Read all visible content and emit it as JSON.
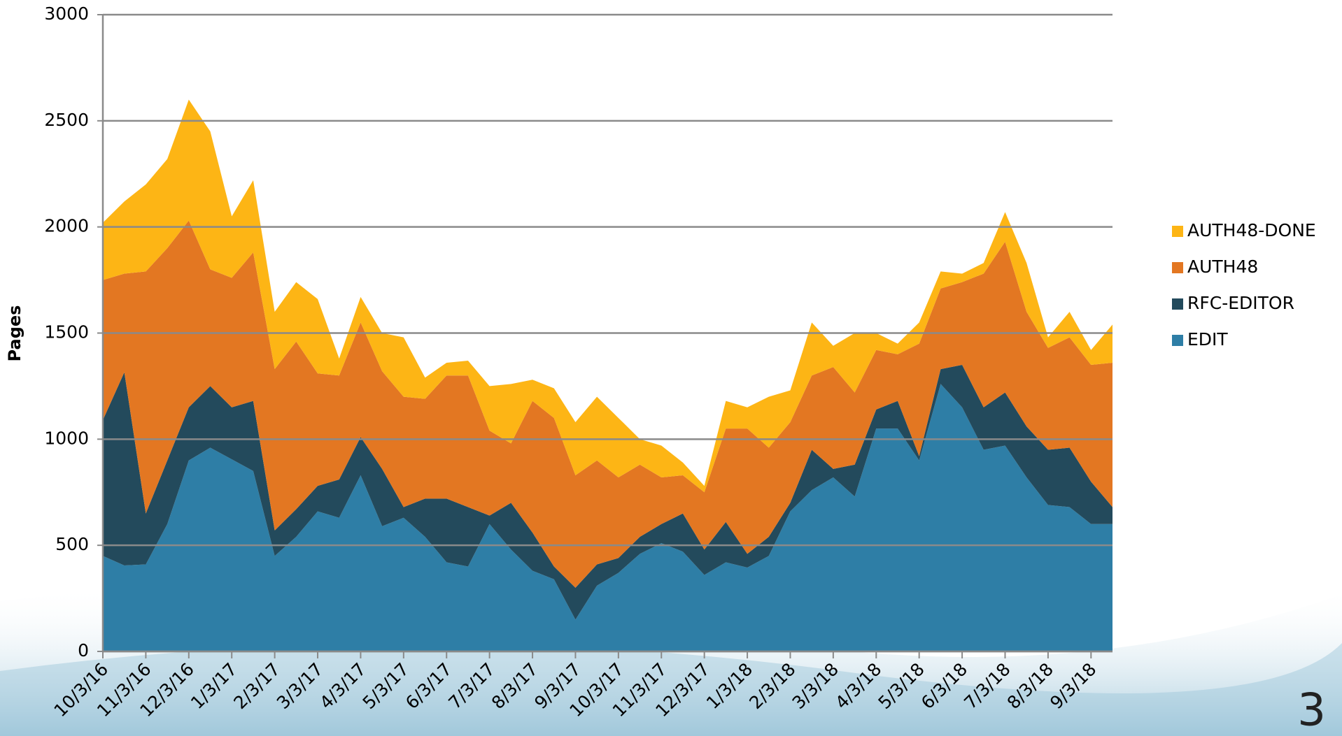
{
  "chart_data": {
    "type": "stacked-area",
    "y_label": "Pages",
    "page_number": "3",
    "categories": [
      "10/3/16",
      null,
      "11/3/16",
      null,
      "12/3/16",
      null,
      "1/3/17",
      null,
      "2/3/17",
      null,
      "3/3/17",
      null,
      "4/3/17",
      null,
      "5/3/17",
      null,
      "6/3/17",
      null,
      "7/3/17",
      null,
      "8/3/17",
      null,
      "9/3/17",
      null,
      "10/3/17",
      null,
      "11/3/17",
      null,
      "12/3/17",
      null,
      "1/3/18",
      null,
      "2/3/18",
      null,
      "3/3/18",
      null,
      "4/3/18",
      null,
      "5/3/18",
      null,
      "6/3/18",
      null,
      "7/3/18",
      null,
      "8/3/18",
      null,
      "9/3/18",
      null
    ],
    "series": [
      {
        "name": "EDIT",
        "color": "#2e7ea6",
        "values": [
          450,
          405,
          410,
          600,
          900,
          960,
          905,
          850,
          450,
          540,
          660,
          630,
          830,
          590,
          630,
          540,
          420,
          400,
          600,
          480,
          380,
          340,
          150,
          310,
          370,
          460,
          510,
          470,
          360,
          420,
          395,
          450,
          660,
          760,
          820,
          730,
          1050,
          1050,
          900,
          1260,
          1150,
          950,
          970,
          820,
          690,
          680,
          600,
          600
        ]
      },
      {
        "name": "RFC-EDITOR",
        "color": "#234a5c",
        "values": [
          640,
          910,
          240,
          300,
          250,
          290,
          245,
          330,
          120,
          130,
          120,
          180,
          180,
          270,
          50,
          180,
          300,
          280,
          40,
          220,
          180,
          60,
          150,
          100,
          70,
          80,
          90,
          180,
          120,
          190,
          65,
          90,
          40,
          190,
          40,
          150,
          90,
          130,
          20,
          70,
          200,
          200,
          250,
          240,
          260,
          280,
          200,
          80
        ]
      },
      {
        "name": "AUTH48",
        "color": "#e37722",
        "values": [
          660,
          465,
          1140,
          1000,
          880,
          550,
          610,
          700,
          760,
          790,
          530,
          490,
          540,
          460,
          520,
          470,
          580,
          620,
          400,
          280,
          620,
          700,
          530,
          490,
          380,
          340,
          220,
          180,
          270,
          440,
          590,
          420,
          380,
          350,
          480,
          340,
          280,
          220,
          530,
          380,
          390,
          630,
          710,
          540,
          480,
          520,
          550,
          680
        ]
      },
      {
        "name": "AUTH48-DONE",
        "color": "#fdb515",
        "values": [
          270,
          340,
          410,
          420,
          570,
          650,
          290,
          340,
          270,
          280,
          350,
          80,
          120,
          180,
          280,
          100,
          60,
          70,
          210,
          280,
          100,
          140,
          250,
          300,
          280,
          120,
          150,
          60,
          30,
          130,
          100,
          240,
          150,
          250,
          100,
          280,
          80,
          50,
          100,
          80,
          40,
          50,
          140,
          230,
          50,
          120,
          70,
          180
        ]
      }
    ],
    "ylim": [
      0,
      3000
    ],
    "yticks": [
      0,
      500,
      1000,
      1500,
      2000,
      2500,
      3000
    ],
    "grid": true,
    "legend": "right"
  }
}
